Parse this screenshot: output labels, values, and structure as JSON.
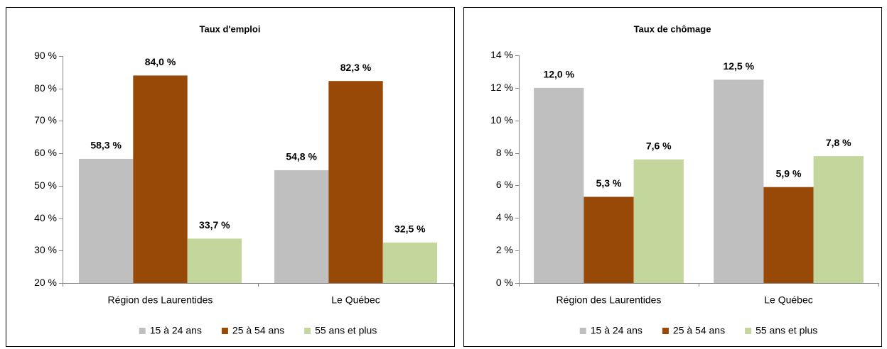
{
  "chart_data": [
    {
      "type": "bar",
      "title": "Taux d'emploi",
      "categories": [
        "Région des Laurentides",
        "Le Québec"
      ],
      "series": [
        {
          "name": "15 à 24 ans",
          "color": "#bfbfbf",
          "values": [
            58.3,
            54.8
          ],
          "value_labels": [
            "58,3 %",
            "54,8 %"
          ]
        },
        {
          "name": "25 à 54 ans",
          "color": "#984807",
          "values": [
            84.0,
            82.3
          ],
          "value_labels": [
            "84,0 %",
            "82,3 %"
          ]
        },
        {
          "name": "55 ans et plus",
          "color": "#c3d69b",
          "values": [
            33.7,
            32.5
          ],
          "value_labels": [
            "33,7 %",
            "32,5 %"
          ]
        }
      ],
      "ylim": [
        20,
        90
      ],
      "yticks": [
        {
          "value": 20,
          "label": "20 %"
        },
        {
          "value": 30,
          "label": "30 %"
        },
        {
          "value": 40,
          "label": "40 %"
        },
        {
          "value": 50,
          "label": "50 %"
        },
        {
          "value": 60,
          "label": "60 %"
        },
        {
          "value": 70,
          "label": "70 %"
        },
        {
          "value": 80,
          "label": "80 %"
        },
        {
          "value": 90,
          "label": "90 %"
        }
      ],
      "legend": "bottom"
    },
    {
      "type": "bar",
      "title": "Taux de chômage",
      "categories": [
        "Région des Laurentides",
        "Le Québec"
      ],
      "series": [
        {
          "name": "15 à 24 ans",
          "color": "#bfbfbf",
          "values": [
            12.0,
            12.5
          ],
          "value_labels": [
            "12,0 %",
            "12,5 %"
          ]
        },
        {
          "name": "25 à 54 ans",
          "color": "#984807",
          "values": [
            5.3,
            5.9
          ],
          "value_labels": [
            "5,3 %",
            "5,9 %"
          ]
        },
        {
          "name": "55 ans et plus",
          "color": "#c3d69b",
          "values": [
            7.6,
            7.8
          ],
          "value_labels": [
            "7,6 %",
            "7,8 %"
          ]
        }
      ],
      "ylim": [
        0,
        14
      ],
      "yticks": [
        {
          "value": 0,
          "label": "0 %"
        },
        {
          "value": 2,
          "label": "2 %"
        },
        {
          "value": 4,
          "label": "4 %"
        },
        {
          "value": 6,
          "label": "6 %"
        },
        {
          "value": 8,
          "label": "8 %"
        },
        {
          "value": 10,
          "label": "10 %"
        },
        {
          "value": 12,
          "label": "12 %"
        },
        {
          "value": 14,
          "label": "14 %"
        }
      ],
      "legend": "bottom"
    }
  ]
}
